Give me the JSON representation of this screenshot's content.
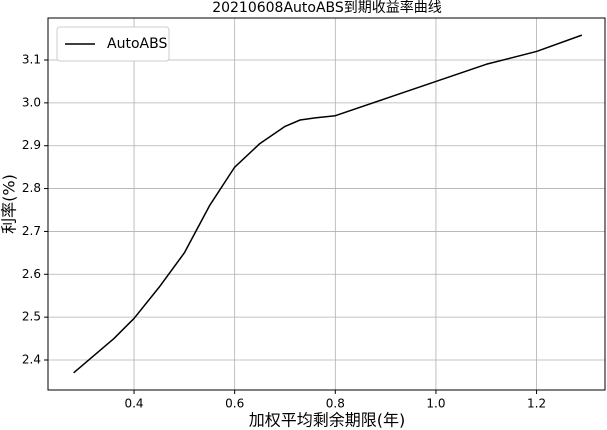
{
  "chart_data": {
    "type": "line",
    "title": "20210608AutoABS到期收益率曲线",
    "x_label": "加权平均剩余期限(年)",
    "y_label": "利率(%)",
    "x": [
      0.28,
      0.32,
      0.36,
      0.4,
      0.45,
      0.5,
      0.55,
      0.6,
      0.65,
      0.7,
      0.73,
      0.76,
      0.8,
      0.9,
      1.0,
      1.1,
      1.2,
      1.29
    ],
    "series": [
      {
        "name": "AutoABS",
        "color": "#000000",
        "values": [
          2.37,
          2.41,
          2.45,
          2.497,
          2.57,
          2.65,
          2.76,
          2.85,
          2.905,
          2.945,
          2.96,
          2.965,
          2.97,
          3.01,
          3.05,
          3.09,
          3.12,
          3.158
        ]
      }
    ],
    "xlim": [
      0.229,
      1.336
    ],
    "ylim": [
      2.33,
      3.198
    ],
    "xticks": [
      0.4,
      0.6,
      0.8,
      {
        "value": 1,
        "label": "1.0"
      },
      1.2
    ],
    "yticks": [
      2.4,
      2.5,
      2.6,
      2.7,
      2.8,
      2.9,
      {
        "value": 3,
        "label": "3.0"
      },
      3.1
    ],
    "grid": true,
    "legend": "upper left"
  }
}
